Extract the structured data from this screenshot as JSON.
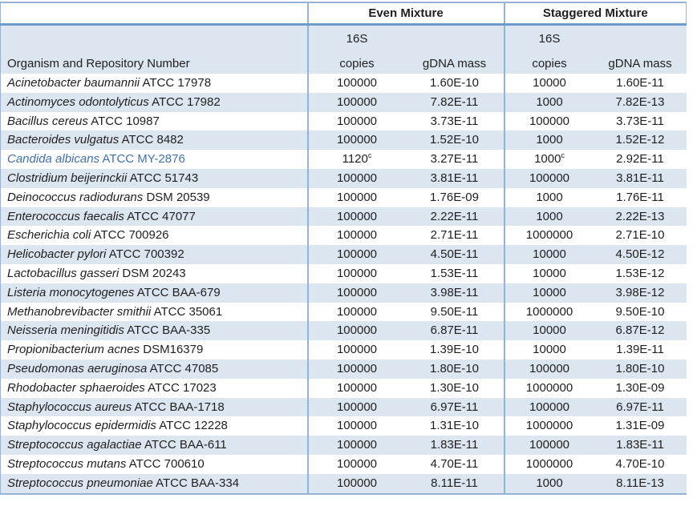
{
  "colors": {
    "stripe": "#dce6f1",
    "border": "#95b3d7",
    "border_strong": "#6f9ac8",
    "link_blue": "#4170b0",
    "text": "#1f1f1f"
  },
  "table": {
    "header": {
      "even": "Even Mixture",
      "staggered": "Staggered Mixture",
      "organism_col": "Organism and Repository Number",
      "copies_line1": "16S",
      "copies_line2": "copies",
      "gdna": "gDNA mass"
    },
    "rows": [
      {
        "name": "Acinetobacter baumannii",
        "accession": "ATCC 17978",
        "even_copies": "100000",
        "even_mass": "1.60E-10",
        "stag_copies": "10000",
        "stag_mass": "1.60E-11"
      },
      {
        "name": "Actinomyces odontolyticus",
        "accession": "ATCC 17982",
        "even_copies": "100000",
        "even_mass": "7.82E-11",
        "stag_copies": "1000",
        "stag_mass": "7.82E-13"
      },
      {
        "name": "Bacillus cereus",
        "accession": "ATCC 10987",
        "even_copies": "100000",
        "even_mass": "3.73E-11",
        "stag_copies": "100000",
        "stag_mass": "3.73E-11"
      },
      {
        "name": "Bacteroides vulgatus",
        "accession": "ATCC 8482",
        "even_copies": "100000",
        "even_mass": "1.52E-10",
        "stag_copies": "1000",
        "stag_mass": "1.52E-12"
      },
      {
        "name": "Candida albicans",
        "accession": "ATCC MY-2876",
        "even_copies": "1120",
        "even_copies_sup": "c",
        "even_mass": "3.27E-11",
        "stag_copies": "1000",
        "stag_copies_sup": "c",
        "stag_mass": "2.92E-11",
        "highlight": true
      },
      {
        "name": "Clostridium beijerinckii",
        "accession": "ATCC 51743",
        "even_copies": "100000",
        "even_mass": "3.81E-11",
        "stag_copies": "100000",
        "stag_mass": "3.81E-11"
      },
      {
        "name": "Deinococcus radiodurans",
        "accession": "DSM 20539",
        "even_copies": "100000",
        "even_mass": "1.76E-09",
        "stag_copies": "1000",
        "stag_mass": "1.76E-11"
      },
      {
        "name": "Enterococcus faecalis",
        "accession": "ATCC 47077",
        "even_copies": "100000",
        "even_mass": "2.22E-11",
        "stag_copies": "1000",
        "stag_mass": "2.22E-13"
      },
      {
        "name": "Escherichia coli",
        "accession": "ATCC 700926",
        "even_copies": "100000",
        "even_mass": "2.71E-11",
        "stag_copies": "1000000",
        "stag_mass": "2.71E-10"
      },
      {
        "name": "Helicobacter pylori",
        "accession": "ATCC 700392",
        "even_copies": "100000",
        "even_mass": "4.50E-11",
        "stag_copies": "10000",
        "stag_mass": "4.50E-12"
      },
      {
        "name": "Lactobacillus gasseri",
        "accession": "DSM 20243",
        "even_copies": "100000",
        "even_mass": "1.53E-11",
        "stag_copies": "10000",
        "stag_mass": "1.53E-12"
      },
      {
        "name": "Listeria monocytogenes",
        "accession": "ATCC BAA-679",
        "even_copies": "100000",
        "even_mass": "3.98E-11",
        "stag_copies": "10000",
        "stag_mass": "3.98E-12"
      },
      {
        "name": "Methanobrevibacter smithii",
        "accession": "ATCC 35061",
        "even_copies": "100000",
        "even_mass": "9.50E-11",
        "stag_copies": "1000000",
        "stag_mass": "9.50E-10"
      },
      {
        "name": "Neisseria meningitidis",
        "accession": "ATCC BAA-335",
        "even_copies": "100000",
        "even_mass": "6.87E-11",
        "stag_copies": "10000",
        "stag_mass": "6.87E-12"
      },
      {
        "name": "Propionibacterium acnes",
        "accession": "DSM16379",
        "even_copies": "100000",
        "even_mass": "1.39E-10",
        "stag_copies": "10000",
        "stag_mass": "1.39E-11"
      },
      {
        "name": "Pseudomonas aeruginosa",
        "accession": "ATCC 47085",
        "even_copies": "100000",
        "even_mass": "1.80E-10",
        "stag_copies": "100000",
        "stag_mass": "1.80E-10"
      },
      {
        "name": "Rhodobacter sphaeroides",
        "accession": "ATCC 17023",
        "even_copies": "100000",
        "even_mass": "1.30E-10",
        "stag_copies": "1000000",
        "stag_mass": "1.30E-09"
      },
      {
        "name": "Staphylococcus aureus",
        "accession": "ATCC BAA-1718",
        "even_copies": "100000",
        "even_mass": "6.97E-11",
        "stag_copies": "100000",
        "stag_mass": "6.97E-11"
      },
      {
        "name": "Staphylococcus epidermidis",
        "accession": "ATCC 12228",
        "even_copies": "100000",
        "even_mass": "1.31E-10",
        "stag_copies": "1000000",
        "stag_mass": "1.31E-09"
      },
      {
        "name": "Streptococcus agalactiae",
        "accession": "ATCC BAA-611",
        "even_copies": "100000",
        "even_mass": "1.83E-11",
        "stag_copies": "100000",
        "stag_mass": "1.83E-11"
      },
      {
        "name": "Streptococcus mutans",
        "accession": "ATCC 700610",
        "even_copies": "100000",
        "even_mass": "4.70E-11",
        "stag_copies": "1000000",
        "stag_mass": "4.70E-10"
      },
      {
        "name": "Streptococcus pneumoniae",
        "accession": "ATCC BAA-334",
        "even_copies": "100000",
        "even_mass": "8.11E-11",
        "stag_copies": "1000",
        "stag_mass": "8.11E-13"
      }
    ]
  }
}
